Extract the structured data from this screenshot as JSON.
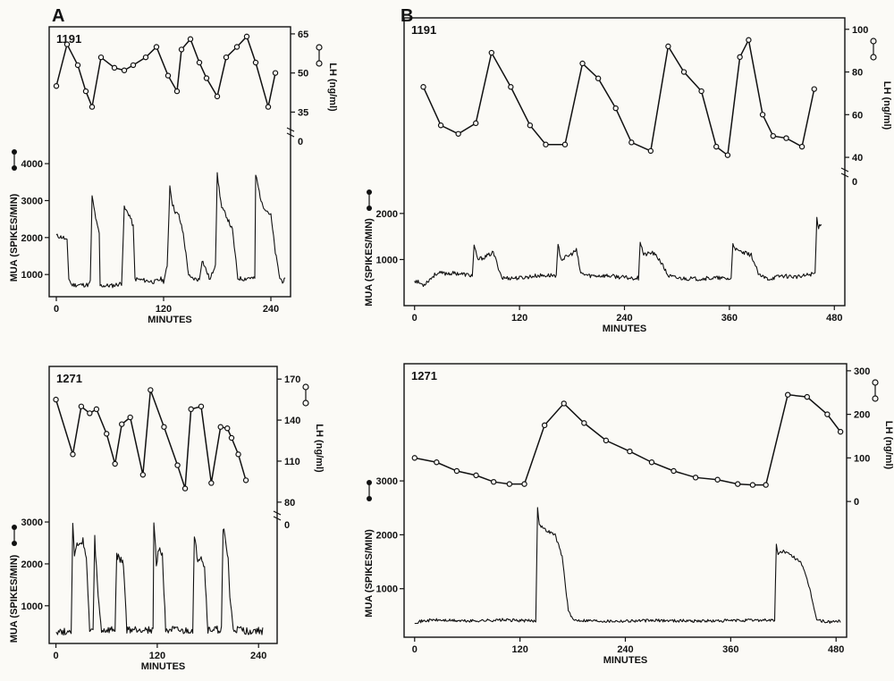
{
  "panel_labels": [
    "A",
    "B"
  ],
  "chart_data": [
    {
      "id": "A-1191",
      "type": "line",
      "animal": "1191",
      "panel": "A",
      "xlabel": "MINUTES",
      "xticks": [
        0,
        120,
        240
      ],
      "xlim": [
        -8,
        262
      ],
      "ylabel_left": "MUA (SPIKES/MIN)",
      "ylabel_right": "LH (ng/ml)",
      "mua_ticks": [
        1000,
        2000,
        3000,
        4000
      ],
      "mua_lim": [
        400,
        4800
      ],
      "lh_ticks": [
        35,
        50,
        65
      ],
      "lh_lim": [
        30,
        66
      ],
      "lh_break_label": "0",
      "lh_series": {
        "name": "LH",
        "x": [
          0,
          12,
          24,
          33,
          40,
          50,
          65,
          76,
          86,
          100,
          112,
          125,
          135,
          140,
          150,
          160,
          168,
          180,
          190,
          202,
          213,
          223,
          237,
          245
        ],
        "y": [
          45,
          61,
          53,
          43,
          37,
          56,
          52,
          51,
          53,
          56,
          60,
          49,
          43,
          59,
          63,
          54,
          48,
          41,
          56,
          60,
          64,
          54,
          37,
          50
        ]
      },
      "mua_series": {
        "name": "MUA",
        "noise": 60,
        "seed": 11,
        "x": [
          0,
          8,
          12,
          14,
          17,
          36,
          38,
          40,
          45,
          48,
          49,
          63,
          73,
          76,
          82,
          86,
          88,
          110,
          117,
          120,
          124,
          127,
          130,
          133,
          137,
          142,
          148,
          150,
          160,
          163,
          172,
          178,
          180,
          185,
          190,
          197,
          203,
          210,
          216,
          222,
          223,
          230,
          240,
          242,
          245,
          250,
          253,
          256
        ],
        "y": [
          2050,
          2000,
          1900,
          900,
          720,
          720,
          800,
          3100,
          2400,
          2100,
          700,
          700,
          760,
          2800,
          2600,
          2300,
          880,
          800,
          880,
          820,
          1200,
          3400,
          2900,
          2700,
          2600,
          2100,
          1000,
          900,
          860,
          1400,
          850,
          1300,
          3700,
          2800,
          2600,
          2200,
          900,
          880,
          920,
          880,
          3700,
          2900,
          2600,
          2200,
          1600,
          900,
          820,
          850
        ]
      }
    },
    {
      "id": "A-1271",
      "type": "line",
      "animal": "1271",
      "panel": "A",
      "xlabel": "MINUTES",
      "xticks": [
        0,
        120,
        240
      ],
      "xlim": [
        -8,
        262
      ],
      "ylabel_left": "MUA (SPIKES/MIN)",
      "ylabel_right": "LH (ng/ml)",
      "mua_ticks": [
        1000,
        2000,
        3000
      ],
      "mua_lim": [
        100,
        3300
      ],
      "lh_ticks": [
        80,
        110,
        140,
        170
      ],
      "lh_lim": [
        76,
        176
      ],
      "lh_break_label": "0",
      "lh_series": {
        "name": "LH",
        "x": [
          0,
          20,
          30,
          40,
          48,
          60,
          70,
          78,
          88,
          103,
          112,
          128,
          144,
          153,
          160,
          172,
          184,
          195,
          203,
          208,
          216,
          225
        ],
        "y": [
          155,
          115,
          150,
          145,
          148,
          130,
          108,
          137,
          142,
          100,
          162,
          135,
          107,
          90,
          148,
          150,
          94,
          135,
          134,
          127,
          115,
          96
        ]
      },
      "mua_series": {
        "name": "MUA",
        "noise": 90,
        "seed": 27,
        "x": [
          0,
          10,
          18,
          20,
          22,
          26,
          28,
          32,
          36,
          40,
          44,
          46,
          50,
          54,
          70,
          72,
          76,
          80,
          84,
          100,
          115,
          116,
          119,
          122,
          126,
          130,
          150,
          162,
          164,
          168,
          172,
          176,
          180,
          196,
          198,
          204,
          206,
          210,
          220,
          225,
          235,
          245
        ],
        "y": [
          400,
          380,
          420,
          2900,
          2200,
          2500,
          2400,
          2600,
          2100,
          400,
          420,
          2600,
          1200,
          400,
          420,
          2200,
          2100,
          2000,
          420,
          440,
          420,
          3000,
          2000,
          2400,
          2200,
          450,
          380,
          420,
          2600,
          2100,
          2200,
          1900,
          420,
          430,
          2900,
          2100,
          1200,
          430,
          420,
          390,
          410,
          400
        ]
      }
    },
    {
      "id": "B-1191",
      "type": "line",
      "animal": "1191",
      "panel": "B",
      "xlabel": "MINUTES",
      "xticks": [
        0,
        120,
        240,
        360,
        480
      ],
      "xlim": [
        -12,
        492
      ],
      "ylabel_left": "MUA (SPIKES/MIN)",
      "ylabel_right": "LH (ng/ml)",
      "mua_ticks": [
        1000,
        2000
      ],
      "mua_lim": [
        0,
        2850
      ],
      "lh_ticks": [
        40,
        60,
        80,
        100
      ],
      "lh_lim": [
        35,
        102
      ],
      "lh_break_label": "0",
      "lh_series": {
        "name": "LH",
        "x": [
          10,
          30,
          50,
          70,
          88,
          110,
          132,
          150,
          172,
          192,
          210,
          230,
          248,
          270,
          290,
          308,
          328,
          345,
          358,
          372,
          382,
          398,
          410,
          425,
          443,
          457
        ],
        "y": [
          73,
          55,
          51,
          56,
          89,
          73,
          55,
          46,
          46,
          84,
          77,
          63,
          47,
          43,
          92,
          80,
          71,
          45,
          41,
          87,
          95,
          60,
          50,
          49,
          45,
          72
        ]
      },
      "mua_series": {
        "name": "MUA",
        "noise": 45,
        "seed": 53,
        "x": [
          0,
          10,
          25,
          50,
          66,
          68,
          72,
          80,
          90,
          100,
          120,
          140,
          162,
          164,
          168,
          178,
          185,
          190,
          200,
          220,
          245,
          256,
          258,
          262,
          272,
          280,
          290,
          300,
          320,
          345,
          362,
          364,
          368,
          375,
          385,
          394,
          405,
          420,
          440,
          452,
          458,
          460,
          462,
          465
        ],
        "y": [
          550,
          450,
          700,
          700,
          650,
          1300,
          1000,
          1050,
          1150,
          600,
          600,
          650,
          660,
          1300,
          1000,
          1100,
          1200,
          700,
          650,
          650,
          600,
          600,
          1400,
          1100,
          1150,
          1000,
          650,
          600,
          580,
          600,
          580,
          1350,
          1200,
          1150,
          1100,
          650,
          580,
          650,
          620,
          680,
          700,
          1900,
          1700,
          1800
        ]
      }
    },
    {
      "id": "B-1271",
      "type": "line",
      "animal": "1271",
      "panel": "B",
      "xlabel": "MINUTES",
      "xticks": [
        0,
        120,
        240,
        360,
        480
      ],
      "xlim": [
        -12,
        492
      ],
      "ylabel_left": "MUA (SPIKES/MIN)",
      "ylabel_right": "LH (ng/ml)",
      "mua_ticks": [
        1000,
        2000,
        3000
      ],
      "mua_lim": [
        100,
        3300
      ],
      "lh_ticks": [
        0,
        100,
        200,
        300
      ],
      "lh_lim": [
        -10,
        310
      ],
      "lh_break_label": "",
      "lh_series": {
        "name": "LH",
        "x": [
          0,
          25,
          48,
          70,
          90,
          108,
          125,
          148,
          170,
          193,
          218,
          245,
          270,
          295,
          320,
          345,
          368,
          385,
          400,
          425,
          447,
          470,
          485
        ],
        "y": [
          100,
          90,
          70,
          60,
          45,
          40,
          40,
          175,
          225,
          180,
          140,
          115,
          90,
          70,
          55,
          50,
          40,
          38,
          38,
          245,
          240,
          200,
          160
        ]
      },
      "mua_series": {
        "name": "MUA",
        "noise": 28,
        "seed": 71,
        "x": [
          0,
          20,
          60,
          100,
          138,
          140,
          142,
          148,
          160,
          168,
          175,
          180,
          220,
          280,
          340,
          400,
          410,
          412,
          414,
          420,
          430,
          440,
          450,
          458,
          470,
          485
        ],
        "y": [
          380,
          420,
          400,
          420,
          400,
          2500,
          2200,
          2100,
          2000,
          1600,
          600,
          420,
          400,
          410,
          400,
          420,
          410,
          1800,
          1650,
          1700,
          1600,
          1500,
          1000,
          420,
          380,
          400
        ]
      }
    }
  ]
}
